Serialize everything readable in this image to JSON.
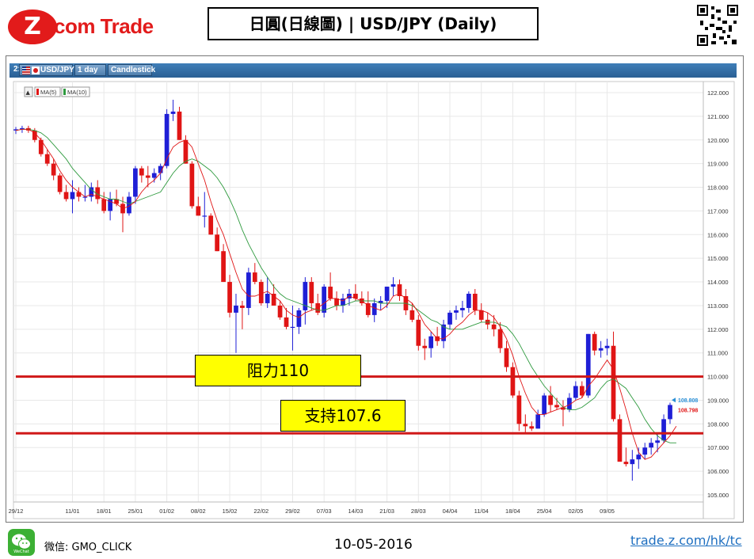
{
  "header": {
    "logo_text": "com Trade",
    "logo_z": "Z",
    "title": "日圓(日線圖) | USD/JPY  (Daily)"
  },
  "toolbar": {
    "index": "2:",
    "symbol": "USD/JPY",
    "interval": "1 day",
    "style": "Candlestick"
  },
  "legend": {
    "collapse": "▲",
    "ma5": "MA(5)",
    "ma10": "MA(10)"
  },
  "annotations": {
    "resistance_label": "阻力110",
    "support_label": "支持107.6"
  },
  "footer": {
    "wechat_label": "WeChat",
    "wechat_id": "微信: GMO_CLICK",
    "date": "10-05-2016",
    "link": "trade.z.com/hk/tc"
  },
  "colors": {
    "up": "#1f1fd6",
    "down": "#e01515",
    "ma5": "#e01515",
    "ma10": "#2e9a3e",
    "level_line": "#d01818",
    "toolbar": "#2e6aa3"
  },
  "chart_data": {
    "type": "candlestick",
    "title": "",
    "ylim": [
      104.6,
      122.3
    ],
    "yticks": [
      "122.000",
      "121.000",
      "120.000",
      "119.000",
      "118.000",
      "117.000",
      "116.000",
      "115.000",
      "114.000",
      "113.000",
      "112.000",
      "111.000",
      "110.000",
      "109.000",
      "108.000",
      "107.000",
      "106.000",
      "105.000"
    ],
    "xtick_labels": [
      {
        "i": 0,
        "label": "29/12"
      },
      {
        "i": 9,
        "label": "11/01"
      },
      {
        "i": 14,
        "label": "18/01"
      },
      {
        "i": 19,
        "label": "25/01"
      },
      {
        "i": 24,
        "label": "01/02"
      },
      {
        "i": 29,
        "label": "08/02"
      },
      {
        "i": 34,
        "label": "15/02"
      },
      {
        "i": 39,
        "label": "22/02"
      },
      {
        "i": 44,
        "label": "29/02"
      },
      {
        "i": 49,
        "label": "07/03"
      },
      {
        "i": 54,
        "label": "14/03"
      },
      {
        "i": 59,
        "label": "21/03"
      },
      {
        "i": 64,
        "label": "28/03"
      },
      {
        "i": 69,
        "label": "04/04"
      },
      {
        "i": 74,
        "label": "11/04"
      },
      {
        "i": 79,
        "label": "18/04"
      },
      {
        "i": 84,
        "label": "25/04"
      },
      {
        "i": 89,
        "label": "02/05"
      },
      {
        "i": 94,
        "label": "09/05"
      }
    ],
    "candles": [
      [
        120.4,
        120.55,
        120.25,
        120.45
      ],
      [
        120.45,
        120.6,
        120.3,
        120.5
      ],
      [
        120.5,
        120.6,
        120.3,
        120.4
      ],
      [
        120.4,
        120.5,
        119.9,
        120.0
      ],
      [
        120.0,
        120.1,
        119.3,
        119.4
      ],
      [
        119.4,
        119.6,
        118.9,
        119.0
      ],
      [
        119.0,
        119.2,
        118.3,
        118.5
      ],
      [
        118.5,
        118.6,
        117.7,
        117.8
      ],
      [
        117.8,
        118.1,
        117.4,
        117.5
      ],
      [
        117.5,
        118.3,
        116.9,
        117.8
      ],
      [
        117.8,
        118.0,
        117.4,
        117.6
      ],
      [
        117.6,
        118.1,
        117.4,
        117.6
      ],
      [
        117.6,
        118.2,
        117.4,
        118.0
      ],
      [
        118.0,
        118.3,
        117.3,
        117.5
      ],
      [
        117.5,
        117.8,
        116.9,
        117.0
      ],
      [
        117.0,
        117.8,
        116.6,
        117.5
      ],
      [
        117.5,
        117.9,
        117.2,
        117.3
      ],
      [
        117.3,
        117.6,
        116.1,
        116.9
      ],
      [
        116.9,
        117.8,
        116.8,
        117.6
      ],
      [
        117.6,
        118.9,
        117.3,
        118.8
      ],
      [
        118.8,
        118.9,
        118.2,
        118.5
      ],
      [
        118.5,
        118.9,
        118.0,
        118.4
      ],
      [
        118.4,
        118.8,
        118.2,
        118.6
      ],
      [
        118.6,
        119.0,
        118.3,
        118.9
      ],
      [
        118.9,
        121.3,
        118.8,
        121.1
      ],
      [
        121.1,
        121.7,
        120.8,
        121.2
      ],
      [
        121.2,
        121.4,
        120.0,
        120.0
      ],
      [
        120.0,
        120.2,
        119.0,
        119.0
      ],
      [
        119.0,
        119.1,
        117.1,
        117.2
      ],
      [
        117.2,
        117.6,
        116.8,
        116.8
      ],
      [
        116.8,
        117.8,
        116.3,
        116.8
      ],
      [
        116.8,
        116.9,
        116.0,
        116.0
      ],
      [
        116.0,
        116.3,
        115.3,
        115.3
      ],
      [
        115.3,
        115.6,
        114.0,
        114.0
      ],
      [
        114.0,
        114.3,
        112.5,
        112.7
      ],
      [
        112.7,
        113.5,
        111.0,
        113.0
      ],
      [
        113.0,
        113.2,
        112.0,
        112.9
      ],
      [
        112.9,
        114.6,
        112.6,
        114.4
      ],
      [
        114.4,
        114.8,
        113.9,
        114.0
      ],
      [
        114.0,
        114.1,
        113.0,
        113.1
      ],
      [
        113.1,
        114.2,
        112.9,
        113.5
      ],
      [
        113.5,
        113.9,
        113.0,
        113.0
      ],
      [
        113.0,
        113.2,
        112.4,
        112.5
      ],
      [
        112.5,
        112.9,
        112.0,
        112.1
      ],
      [
        112.1,
        113.0,
        111.1,
        112.1
      ],
      [
        112.1,
        112.9,
        111.8,
        112.8
      ],
      [
        112.8,
        114.2,
        112.2,
        114.0
      ],
      [
        114.0,
        114.2,
        112.8,
        113.1
      ],
      [
        113.1,
        113.5,
        112.6,
        112.7
      ],
      [
        112.7,
        113.9,
        112.5,
        113.8
      ],
      [
        113.8,
        114.4,
        113.2,
        113.3
      ],
      [
        113.3,
        113.6,
        112.8,
        113.0
      ],
      [
        113.0,
        113.5,
        112.7,
        113.3
      ],
      [
        113.3,
        113.7,
        113.0,
        113.5
      ],
      [
        113.5,
        113.9,
        113.2,
        113.3
      ],
      [
        113.3,
        113.6,
        113.0,
        113.1
      ],
      [
        113.1,
        113.6,
        112.5,
        112.6
      ],
      [
        112.6,
        113.3,
        112.3,
        113.1
      ],
      [
        113.1,
        113.4,
        112.8,
        113.2
      ],
      [
        113.2,
        113.8,
        112.9,
        113.8
      ],
      [
        113.8,
        114.2,
        113.4,
        113.9
      ],
      [
        113.9,
        114.1,
        113.2,
        113.4
      ],
      [
        113.4,
        113.7,
        112.6,
        112.8
      ],
      [
        112.8,
        113.1,
        112.3,
        112.4
      ],
      [
        112.4,
        112.6,
        111.1,
        111.3
      ],
      [
        111.3,
        111.6,
        110.7,
        111.2
      ],
      [
        111.2,
        111.9,
        110.8,
        111.7
      ],
      [
        111.7,
        112.1,
        111.3,
        111.5
      ],
      [
        111.5,
        112.4,
        111.2,
        112.2
      ],
      [
        112.2,
        112.8,
        112.0,
        112.7
      ],
      [
        112.7,
        113.0,
        112.4,
        112.8
      ],
      [
        112.8,
        113.2,
        112.5,
        112.9
      ],
      [
        112.9,
        113.6,
        112.7,
        113.5
      ],
      [
        113.5,
        113.7,
        112.6,
        112.8
      ],
      [
        112.8,
        113.1,
        112.3,
        112.4
      ],
      [
        112.4,
        112.7,
        112.0,
        112.2
      ],
      [
        112.2,
        112.6,
        111.7,
        112.0
      ],
      [
        112.0,
        112.3,
        111.0,
        111.2
      ],
      [
        111.2,
        111.5,
        110.2,
        110.4
      ],
      [
        110.4,
        110.6,
        109.1,
        109.2
      ],
      [
        109.2,
        109.4,
        107.7,
        108.0
      ],
      [
        108.0,
        108.4,
        107.6,
        107.9
      ],
      [
        107.9,
        108.1,
        107.7,
        107.8
      ],
      [
        107.8,
        108.6,
        107.8,
        108.4
      ],
      [
        108.4,
        109.3,
        108.3,
        109.2
      ],
      [
        109.2,
        109.6,
        108.5,
        108.8
      ],
      [
        108.8,
        109.1,
        108.6,
        108.7
      ],
      [
        108.7,
        109.0,
        107.9,
        108.6
      ],
      [
        108.6,
        109.3,
        108.5,
        109.1
      ],
      [
        109.1,
        109.8,
        109.0,
        109.6
      ],
      [
        109.6,
        109.8,
        109.1,
        109.2
      ],
      [
        109.2,
        111.8,
        109.1,
        111.8
      ],
      [
        111.8,
        111.9,
        110.9,
        111.1
      ],
      [
        111.1,
        111.5,
        110.8,
        111.2
      ],
      [
        111.2,
        111.6,
        110.9,
        111.3
      ],
      [
        111.3,
        111.9,
        108.1,
        108.2
      ],
      [
        108.2,
        108.4,
        106.5,
        106.4
      ],
      [
        106.4,
        107.0,
        106.2,
        106.3
      ],
      [
        106.3,
        106.9,
        105.6,
        106.5
      ],
      [
        106.5,
        107.0,
        106.1,
        106.7
      ],
      [
        106.7,
        107.2,
        106.5,
        107.0
      ],
      [
        107.0,
        107.4,
        106.7,
        107.2
      ],
      [
        107.2,
        107.6,
        106.8,
        107.3
      ],
      [
        107.3,
        108.4,
        107.2,
        108.2
      ],
      [
        108.2,
        108.9,
        108.0,
        108.8
      ]
    ],
    "ma5": [
      120.4,
      120.45,
      120.45,
      120.3,
      120.0,
      119.6,
      119.2,
      118.7,
      118.3,
      118.0,
      117.8,
      117.6,
      117.7,
      117.6,
      117.5,
      117.4,
      117.3,
      117.1,
      117.2,
      117.4,
      117.8,
      118.1,
      118.3,
      118.6,
      119.2,
      119.7,
      119.9,
      120.0,
      119.7,
      119.0,
      118.3,
      117.4,
      116.6,
      116.0,
      115.2,
      114.4,
      113.7,
      113.4,
      113.4,
      113.5,
      113.6,
      113.4,
      113.2,
      112.8,
      112.6,
      112.5,
      112.7,
      112.8,
      112.9,
      113.1,
      113.3,
      113.3,
      113.2,
      113.4,
      113.3,
      113.2,
      113.0,
      112.9,
      112.8,
      113.0,
      113.4,
      113.5,
      113.3,
      113.1,
      112.7,
      112.2,
      111.9,
      111.6,
      111.6,
      111.8,
      112.1,
      112.3,
      112.6,
      112.8,
      112.8,
      112.7,
      112.5,
      112.1,
      111.6,
      110.9,
      110.0,
      109.3,
      108.7,
      108.4,
      108.4,
      108.5,
      108.6,
      108.7,
      108.8,
      109.0,
      109.1,
      109.6,
      109.9,
      110.3,
      110.7,
      110.3,
      109.5,
      108.6,
      107.6,
      106.8,
      106.5,
      106.6,
      106.9,
      107.2,
      107.5,
      107.9
    ],
    "ma10": [
      120.4,
      120.45,
      120.45,
      120.4,
      120.3,
      120.1,
      119.8,
      119.5,
      119.2,
      118.8,
      118.5,
      118.2,
      117.9,
      117.7,
      117.6,
      117.5,
      117.5,
      117.4,
      117.3,
      117.4,
      117.5,
      117.6,
      117.7,
      117.8,
      118.2,
      118.6,
      118.9,
      119.1,
      119.2,
      119.1,
      118.9,
      118.7,
      118.4,
      118.0,
      117.5,
      116.9,
      116.2,
      115.6,
      115.1,
      114.6,
      114.2,
      113.8,
      113.5,
      113.3,
      113.2,
      113.1,
      113.0,
      112.9,
      112.8,
      112.8,
      112.9,
      113.0,
      113.0,
      113.1,
      113.2,
      113.2,
      113.2,
      113.2,
      113.1,
      113.1,
      113.1,
      113.1,
      113.1,
      113.0,
      112.8,
      112.6,
      112.4,
      112.3,
      112.1,
      112.0,
      112.0,
      112.0,
      112.1,
      112.2,
      112.3,
      112.3,
      112.3,
      112.2,
      112.1,
      111.8,
      111.4,
      110.9,
      110.4,
      110.0,
      109.6,
      109.3,
      109.0,
      108.7,
      108.6,
      108.6,
      108.7,
      108.9,
      109.1,
      109.5,
      109.8,
      109.9,
      109.7,
      109.5,
      109.1,
      108.7,
      108.2,
      107.8,
      107.5,
      107.3,
      107.2,
      107.2
    ],
    "levels": [
      {
        "value": 110.0,
        "label": "阻力110"
      },
      {
        "value": 107.6,
        "label": "支持107.6"
      }
    ],
    "last_price_labels": [
      {
        "value": 108.808,
        "text": "108.808",
        "color": "#2a8fd6"
      },
      {
        "value": 108.798,
        "text": "108.798",
        "color": "#e01515"
      }
    ]
  }
}
